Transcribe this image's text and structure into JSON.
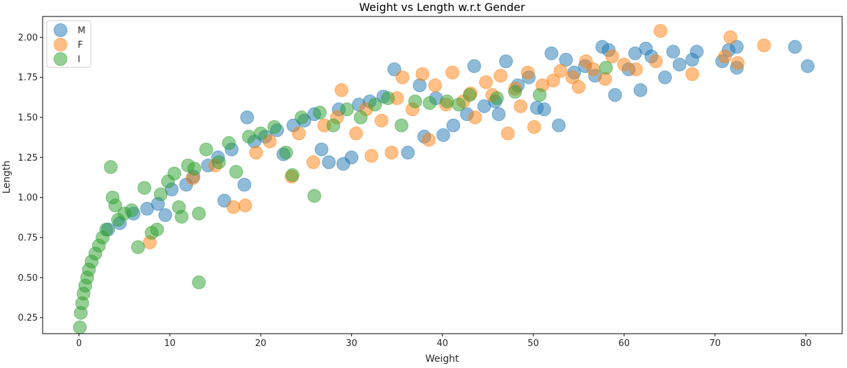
{
  "chart_data": {
    "type": "scatter",
    "title": "Weight vs Length w.r.t Gender",
    "xlabel": "Weight",
    "ylabel": "Length",
    "xlim": [
      -4,
      84
    ],
    "ylim": [
      0.15,
      2.13
    ],
    "xticks": [
      0,
      10,
      20,
      30,
      40,
      50,
      60,
      70,
      80
    ],
    "yticks": [
      "0.25",
      "0.50",
      "0.75",
      "1.00",
      "1.25",
      "1.50",
      "1.75",
      "2.00"
    ],
    "grid": false,
    "legend": "top-left",
    "series": [
      {
        "name": "M",
        "color": "#1f77b4",
        "points": [
          [
            3.2,
            0.8
          ],
          [
            4.5,
            0.84
          ],
          [
            6.0,
            0.9
          ],
          [
            7.5,
            0.93
          ],
          [
            8.7,
            0.96
          ],
          [
            9.5,
            0.89
          ],
          [
            10.2,
            1.05
          ],
          [
            11.8,
            1.08
          ],
          [
            12.6,
            1.13
          ],
          [
            14.2,
            1.2
          ],
          [
            15.3,
            1.25
          ],
          [
            16.0,
            0.98
          ],
          [
            16.8,
            1.3
          ],
          [
            18.2,
            1.08
          ],
          [
            18.5,
            1.5
          ],
          [
            19.3,
            1.35
          ],
          [
            20.5,
            1.38
          ],
          [
            21.8,
            1.42
          ],
          [
            22.5,
            1.27
          ],
          [
            23.6,
            1.45
          ],
          [
            24.8,
            1.48
          ],
          [
            25.9,
            1.52
          ],
          [
            26.7,
            1.3
          ],
          [
            27.5,
            1.22
          ],
          [
            28.6,
            1.55
          ],
          [
            29.1,
            1.21
          ],
          [
            30.0,
            1.25
          ],
          [
            30.8,
            1.58
          ],
          [
            32.0,
            1.6
          ],
          [
            33.5,
            1.63
          ],
          [
            34.7,
            1.8
          ],
          [
            36.2,
            1.28
          ],
          [
            37.5,
            1.7
          ],
          [
            38.0,
            1.38
          ],
          [
            39.3,
            1.62
          ],
          [
            40.1,
            1.39
          ],
          [
            41.2,
            1.45
          ],
          [
            42.7,
            1.52
          ],
          [
            43.5,
            1.82
          ],
          [
            44.6,
            1.57
          ],
          [
            45.8,
            1.6
          ],
          [
            46.2,
            1.52
          ],
          [
            47.0,
            1.85
          ],
          [
            48.3,
            1.7
          ],
          [
            49.5,
            1.75
          ],
          [
            50.4,
            1.56
          ],
          [
            51.2,
            1.55
          ],
          [
            52.0,
            1.9
          ],
          [
            52.8,
            1.45
          ],
          [
            53.6,
            1.86
          ],
          [
            54.5,
            1.78
          ],
          [
            55.7,
            1.82
          ],
          [
            56.8,
            1.76
          ],
          [
            57.6,
            1.94
          ],
          [
            58.3,
            1.92
          ],
          [
            59.0,
            1.64
          ],
          [
            60.5,
            1.8
          ],
          [
            61.2,
            1.9
          ],
          [
            61.8,
            1.67
          ],
          [
            62.4,
            1.93
          ],
          [
            63.0,
            1.88
          ],
          [
            64.5,
            1.75
          ],
          [
            65.4,
            1.91
          ],
          [
            66.1,
            1.83
          ],
          [
            67.5,
            1.86
          ],
          [
            68.0,
            1.91
          ],
          [
            70.8,
            1.85
          ],
          [
            71.5,
            1.92
          ],
          [
            72.4,
            1.94
          ],
          [
            72.4,
            1.81
          ],
          [
            78.8,
            1.94
          ],
          [
            80.2,
            1.82
          ]
        ]
      },
      {
        "name": "F",
        "color": "#ff7f0e",
        "points": [
          [
            7.8,
            0.72
          ],
          [
            12.5,
            1.12
          ],
          [
            15.0,
            1.2
          ],
          [
            17.0,
            0.94
          ],
          [
            18.3,
            0.95
          ],
          [
            19.5,
            1.28
          ],
          [
            21.0,
            1.35
          ],
          [
            23.4,
            1.13
          ],
          [
            24.2,
            1.4
          ],
          [
            25.8,
            1.22
          ],
          [
            27.0,
            1.45
          ],
          [
            28.4,
            1.5
          ],
          [
            28.9,
            1.67
          ],
          [
            30.5,
            1.4
          ],
          [
            31.6,
            1.55
          ],
          [
            32.2,
            1.26
          ],
          [
            33.3,
            1.48
          ],
          [
            34.4,
            1.28
          ],
          [
            35.0,
            1.62
          ],
          [
            35.6,
            1.75
          ],
          [
            36.7,
            1.55
          ],
          [
            37.8,
            1.77
          ],
          [
            38.5,
            1.36
          ],
          [
            39.2,
            1.7
          ],
          [
            40.4,
            1.58
          ],
          [
            41.1,
            1.78
          ],
          [
            42.3,
            1.6
          ],
          [
            43.1,
            1.65
          ],
          [
            43.6,
            1.5
          ],
          [
            44.8,
            1.72
          ],
          [
            45.5,
            1.64
          ],
          [
            46.4,
            1.76
          ],
          [
            47.2,
            1.4
          ],
          [
            48.0,
            1.68
          ],
          [
            48.6,
            1.57
          ],
          [
            49.4,
            1.78
          ],
          [
            50.1,
            1.44
          ],
          [
            51.0,
            1.7
          ],
          [
            52.2,
            1.73
          ],
          [
            53.0,
            1.79
          ],
          [
            54.3,
            1.75
          ],
          [
            55.0,
            1.69
          ],
          [
            55.8,
            1.85
          ],
          [
            56.6,
            1.8
          ],
          [
            57.9,
            1.74
          ],
          [
            58.7,
            1.88
          ],
          [
            60.0,
            1.83
          ],
          [
            61.3,
            1.8
          ],
          [
            63.5,
            1.85
          ],
          [
            64.0,
            2.04
          ],
          [
            67.5,
            1.77
          ],
          [
            71.1,
            1.88
          ],
          [
            71.7,
            2.0
          ],
          [
            72.5,
            1.84
          ],
          [
            75.4,
            1.95
          ]
        ]
      },
      {
        "name": "I",
        "color": "#2ca02c",
        "points": [
          [
            0.1,
            0.19
          ],
          [
            0.2,
            0.28
          ],
          [
            0.35,
            0.34
          ],
          [
            0.5,
            0.4
          ],
          [
            0.7,
            0.45
          ],
          [
            0.9,
            0.5
          ],
          [
            1.1,
            0.55
          ],
          [
            1.4,
            0.6
          ],
          [
            1.8,
            0.65
          ],
          [
            2.2,
            0.7
          ],
          [
            2.6,
            0.75
          ],
          [
            3.0,
            0.8
          ],
          [
            3.5,
            1.19
          ],
          [
            3.7,
            1.0
          ],
          [
            4.0,
            0.95
          ],
          [
            4.3,
            0.86
          ],
          [
            5.0,
            0.9
          ],
          [
            5.8,
            0.92
          ],
          [
            6.5,
            0.69
          ],
          [
            7.2,
            1.06
          ],
          [
            8.0,
            0.78
          ],
          [
            8.6,
            0.8
          ],
          [
            9.0,
            1.02
          ],
          [
            9.8,
            1.1
          ],
          [
            10.5,
            1.15
          ],
          [
            11.3,
            0.88
          ],
          [
            11.0,
            0.94
          ],
          [
            12.0,
            1.2
          ],
          [
            12.7,
            1.18
          ],
          [
            13.2,
            0.9
          ],
          [
            13.2,
            0.47
          ],
          [
            14.0,
            1.3
          ],
          [
            15.4,
            1.22
          ],
          [
            16.5,
            1.34
          ],
          [
            17.3,
            1.16
          ],
          [
            18.7,
            1.38
          ],
          [
            20.0,
            1.4
          ],
          [
            21.5,
            1.44
          ],
          [
            22.8,
            1.28
          ],
          [
            23.5,
            1.14
          ],
          [
            24.5,
            1.5
          ],
          [
            25.9,
            1.01
          ],
          [
            26.5,
            1.53
          ],
          [
            28.0,
            1.45
          ],
          [
            29.5,
            1.55
          ],
          [
            31.0,
            1.5
          ],
          [
            32.6,
            1.58
          ],
          [
            34.0,
            1.62
          ],
          [
            35.5,
            1.45
          ],
          [
            37.0,
            1.6
          ],
          [
            38.6,
            1.59
          ],
          [
            40.5,
            1.6
          ],
          [
            41.8,
            1.58
          ],
          [
            43.0,
            1.64
          ],
          [
            46.0,
            1.62
          ],
          [
            48.0,
            1.66
          ],
          [
            50.7,
            1.64
          ],
          [
            58.0,
            1.81
          ]
        ]
      }
    ]
  }
}
